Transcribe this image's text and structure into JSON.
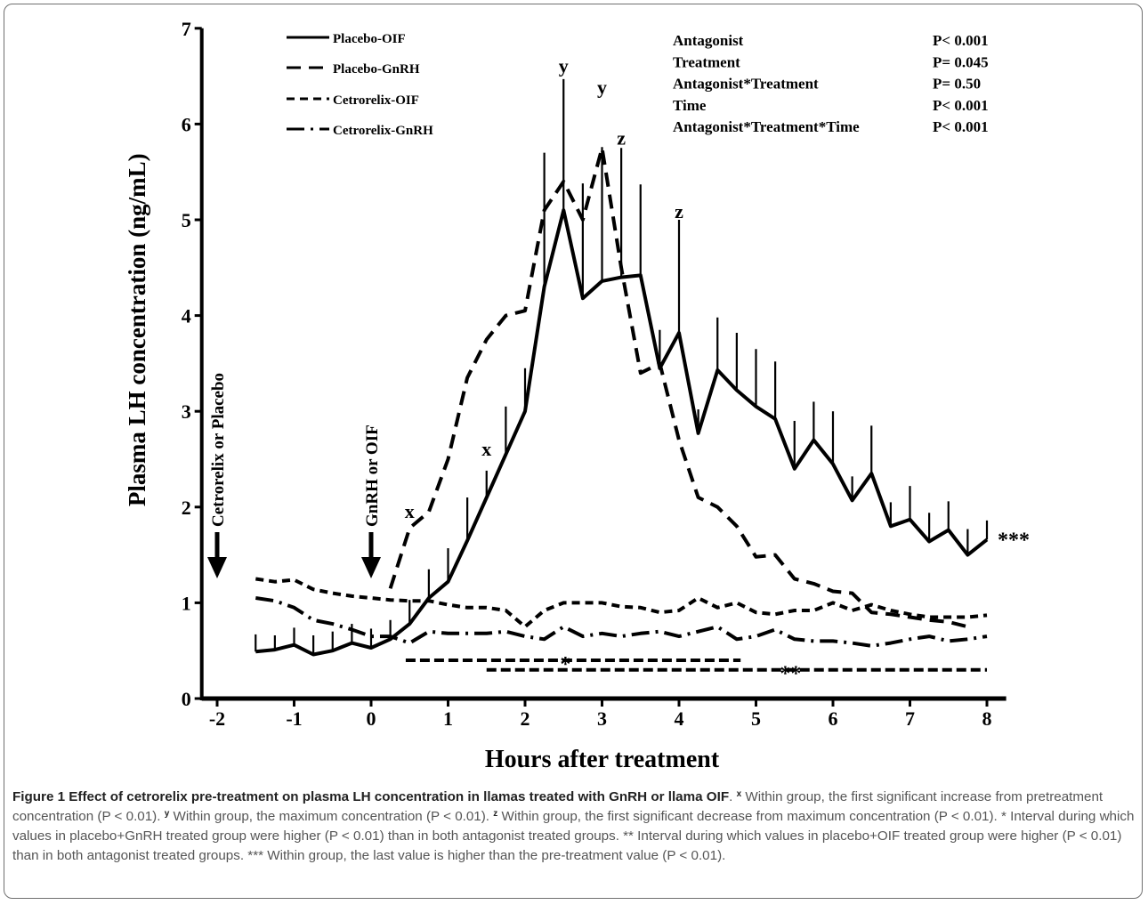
{
  "chart_data": {
    "type": "line",
    "ylabel": "Plasma LH concentration (ng/mL)",
    "xlabel": "Hours after treatment",
    "xlim": [
      -2.2,
      8.25
    ],
    "ylim": [
      0,
      7
    ],
    "x_ticks": [
      -2,
      -1,
      0,
      1,
      2,
      3,
      4,
      5,
      6,
      7,
      8
    ],
    "y_ticks": [
      0,
      1,
      2,
      3,
      4,
      5,
      6,
      7
    ],
    "grid": false,
    "legend_position": "top-left",
    "series": [
      {
        "name": "Placebo-OIF",
        "style": "solid",
        "x": [
          -1.5,
          -1.25,
          -1,
          -0.75,
          -0.5,
          -0.25,
          0,
          0.25,
          0.5,
          0.75,
          1,
          1.25,
          1.5,
          1.75,
          2,
          2.25,
          2.5,
          2.75,
          3,
          3.25,
          3.5,
          3.75,
          4,
          4.25,
          4.5,
          4.75,
          5,
          5.25,
          5.5,
          5.75,
          6,
          6.25,
          6.5,
          6.75,
          7,
          7.25,
          7.5,
          7.75,
          8
        ],
        "y": [
          0.49,
          0.51,
          0.56,
          0.46,
          0.5,
          0.58,
          0.53,
          0.62,
          0.78,
          1.05,
          1.22,
          1.65,
          2.1,
          2.55,
          3.0,
          4.3,
          5.1,
          4.18,
          4.36,
          4.4,
          4.42,
          3.45,
          3.82,
          2.77,
          3.43,
          3.22,
          3.05,
          2.92,
          2.4,
          2.7,
          2.45,
          2.07,
          2.35,
          1.8,
          1.87,
          1.64,
          1.76,
          1.5,
          1.66
        ],
        "err": [
          0.18,
          0.15,
          0.18,
          0.2,
          0.2,
          0.2,
          0.2,
          0.2,
          0.25,
          0.3,
          0.35,
          0.45,
          0.28,
          0.5,
          0.45,
          1.4,
          1.37,
          1.2,
          1.4,
          1.35,
          0.95,
          0.4,
          1.18,
          0.25,
          0.55,
          0.6,
          0.6,
          0.6,
          0.5,
          0.4,
          0.55,
          0.25,
          0.5,
          0.25,
          0.35,
          0.3,
          0.3,
          0.27,
          0.2
        ]
      },
      {
        "name": "Placebo-GnRH",
        "style": "dashed",
        "x": [
          0.25,
          0.5,
          0.75,
          1,
          1.25,
          1.5,
          1.75,
          2,
          2.25,
          2.5,
          2.75,
          3,
          3.25,
          3.5,
          3.75,
          4,
          4.25,
          4.5,
          4.75,
          5,
          5.25,
          5.5,
          5.75,
          6,
          6.25,
          6.5,
          6.75,
          7,
          7.25,
          7.5,
          7.75
        ],
        "y": [
          1.15,
          1.78,
          1.95,
          2.5,
          3.35,
          3.75,
          4.0,
          4.05,
          5.1,
          5.4,
          5.0,
          5.75,
          4.5,
          3.4,
          3.5,
          2.7,
          2.1,
          2.0,
          1.8,
          1.48,
          1.5,
          1.25,
          1.2,
          1.12,
          1.1,
          0.9,
          0.88,
          0.85,
          0.82,
          0.8,
          0.75
        ]
      },
      {
        "name": "Cetrorelix-OIF",
        "style": "short-dashed",
        "x": [
          -1.5,
          -1.25,
          -1,
          -0.75,
          -0.5,
          -0.25,
          0,
          0.25,
          0.5,
          0.75,
          1,
          1.25,
          1.5,
          1.75,
          2,
          2.25,
          2.5,
          2.75,
          3,
          3.25,
          3.5,
          3.75,
          4,
          4.25,
          4.5,
          4.75,
          5,
          5.25,
          5.5,
          5.75,
          6,
          6.25,
          6.5,
          6.75,
          7,
          7.25,
          7.5,
          7.75,
          8
        ],
        "y": [
          1.25,
          1.22,
          1.24,
          1.14,
          1.1,
          1.07,
          1.05,
          1.03,
          1.02,
          1.02,
          0.98,
          0.95,
          0.95,
          0.92,
          0.75,
          0.92,
          1.0,
          1.0,
          1.0,
          0.96,
          0.95,
          0.9,
          0.92,
          1.05,
          0.95,
          1.0,
          0.9,
          0.88,
          0.92,
          0.92,
          1.0,
          0.92,
          0.98,
          0.92,
          0.88,
          0.85,
          0.85,
          0.85,
          0.87
        ]
      },
      {
        "name": "Cetrorelix-GnRH",
        "style": "dash-dot",
        "x": [
          -1.5,
          -1.25,
          -1,
          -0.75,
          -0.5,
          -0.25,
          0,
          0.25,
          0.5,
          0.75,
          1,
          1.25,
          1.5,
          1.75,
          2,
          2.25,
          2.5,
          2.75,
          3,
          3.25,
          3.5,
          3.75,
          4,
          4.25,
          4.5,
          4.75,
          5,
          5.25,
          5.5,
          5.75,
          6,
          6.25,
          6.5,
          6.75,
          7,
          7.25,
          7.5,
          7.75,
          8
        ],
        "y": [
          1.05,
          1.02,
          0.95,
          0.82,
          0.78,
          0.72,
          0.65,
          0.65,
          0.58,
          0.7,
          0.68,
          0.68,
          0.68,
          0.7,
          0.65,
          0.62,
          0.75,
          0.65,
          0.68,
          0.65,
          0.68,
          0.7,
          0.65,
          0.7,
          0.75,
          0.62,
          0.65,
          0.72,
          0.62,
          0.6,
          0.6,
          0.58,
          0.55,
          0.58,
          0.62,
          0.65,
          0.6,
          0.62,
          0.65
        ]
      }
    ],
    "significance_bars": [
      {
        "label": "*",
        "from": 0.45,
        "to": 4.8,
        "y": 0.4
      },
      {
        "label": "**",
        "from": 1.5,
        "to": 8.0,
        "y": 0.3
      }
    ],
    "point_labels": [
      {
        "text": "x",
        "x": 0.5,
        "y": 1.85
      },
      {
        "text": "x",
        "x": 1.5,
        "y": 2.5
      },
      {
        "text": "y",
        "x": 2.5,
        "y": 6.5
      },
      {
        "text": "y",
        "x": 3.0,
        "y": 6.28
      },
      {
        "text": "z",
        "x": 3.25,
        "y": 5.75
      },
      {
        "text": "z",
        "x": 4.0,
        "y": 4.98
      }
    ],
    "end_annotation": "***",
    "stats": [
      {
        "term": "Antagonist",
        "p": "P< 0.001"
      },
      {
        "term": "Treatment",
        "p": "P= 0.045"
      },
      {
        "term": "Antagonist*Treatment",
        "p": "P= 0.50"
      },
      {
        "term": "Time",
        "p": "P< 0.001"
      },
      {
        "term": "Antagonist*Treatment*Time",
        "p": "P< 0.001"
      }
    ],
    "arrows": [
      {
        "label": "Cetrorelix or Placebo",
        "x": -2
      },
      {
        "label": "GnRH or OIF",
        "x": 0
      }
    ]
  },
  "caption": {
    "title": "Figure 1 Effect of cetrorelix pre-treatment on plasma LH concentration in llamas treated with GnRH or llama OIF",
    "notes": [
      {
        "mark": "x",
        "text": "Within group, the first significant increase from pretreatment concentration (P < 0.01)."
      },
      {
        "mark": "y",
        "text": "Within group, the maximum concentration (P < 0.01)."
      },
      {
        "mark": "z",
        "text": "Within group, the first significant decrease from maximum concentration (P < 0.01)."
      },
      {
        "mark": "",
        "text": "* Interval during which values in placebo+GnRH treated group were higher (P < 0.01) than in both antagonist treated groups. ** Interval during which values in placebo+OIF treated group were higher (P < 0.01) than in both antagonist treated groups. *** Within group, the last value is higher than the pre-treatment value (P < 0.01)."
      }
    ]
  }
}
